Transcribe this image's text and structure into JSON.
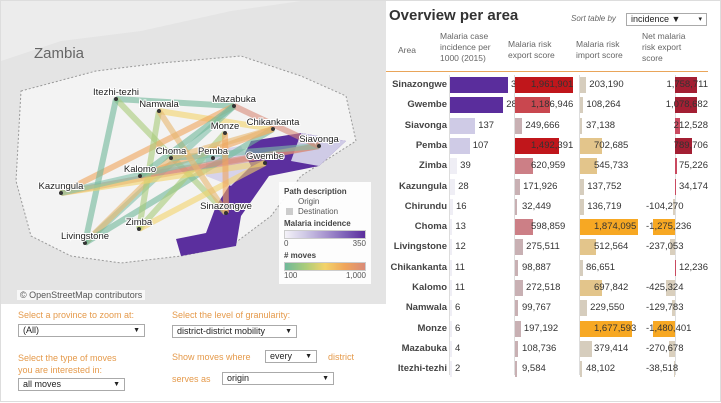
{
  "map": {
    "country_label": "Zambia",
    "attribution": "© OpenStreetMap contributors",
    "districts": [
      "Itezhi-tezhi",
      "Namwala",
      "Mazabuka",
      "Chikankanta",
      "Monze",
      "Siavonga",
      "Choma",
      "Pemba",
      "Gwembe",
      "Kalomo",
      "Kazungula",
      "Sinazongwe",
      "Zimba",
      "Livingstone"
    ],
    "routes": [
      [
        "Itezhi-tezhi",
        "Mazabuka"
      ],
      [
        "Itezhi-tezhi",
        "Sinazongwe"
      ],
      [
        "Namwala",
        "Chikankanta"
      ],
      [
        "Kazungula",
        "Mazabuka"
      ],
      [
        "Kazungula",
        "Siavonga"
      ],
      [
        "Livingstone",
        "Mazabuka"
      ],
      [
        "Livingstone",
        "Choma"
      ],
      [
        "Livingstone",
        "Chikankanta"
      ],
      [
        "Zimba",
        "Monze"
      ],
      [
        "Zimba",
        "Gwembe"
      ],
      [
        "Kalomo",
        "Chikankanta"
      ],
      [
        "Kalomo",
        "Siavonga"
      ],
      [
        "Choma",
        "Siavonga"
      ],
      [
        "Choma",
        "Chikankanta"
      ],
      [
        "Itezhi-tezhi",
        "Livingstone"
      ],
      [
        "Namwala",
        "Zimba"
      ],
      [
        "Kazungula",
        "Gwembe"
      ],
      [
        "Monze",
        "Sinazongwe"
      ],
      [
        "Mazabuka",
        "Siavonga"
      ],
      [
        "Pemba",
        "Kazungula"
      ],
      [
        "Namwala",
        "Sinazongwe"
      ],
      [
        "Kalomo",
        "Mazabuka"
      ]
    ],
    "legend": {
      "path_title": "Path description",
      "origin": "Origin",
      "destination": "Destination",
      "incidence_title": "Malaria incidence",
      "inc_min": "0",
      "inc_max": "350",
      "moves_title": "# moves",
      "moves_min": "100",
      "moves_max": "1,000"
    }
  },
  "controls": {
    "province_label": "Select a province to zoom at:",
    "province_value": "(All)",
    "granularity_label": "Select the level of granularity:",
    "granularity_value": "district-district mobility",
    "moves_label": "Select the type of moves you are interested in:",
    "moves_value": "all moves",
    "show_label": "Show moves where",
    "show_value": "every",
    "district_label": "district",
    "serves_label": "serves as",
    "serves_value": "origin"
  },
  "overview": {
    "title": "Overview per area",
    "sort_label": "Sort table by",
    "sort_value": "incidence ▼",
    "headers": [
      "Area",
      "Malaria case incidence per 1000 (2015)",
      "Malaria risk export score",
      "Malaria risk import score",
      "Net malaria risk export score"
    ],
    "rows": [
      {
        "area": "Sinazongwe",
        "inc": 315,
        "exp": "1,961,901",
        "imp": "203,190",
        "net": "1,758,711"
      },
      {
        "area": "Gwembe",
        "inc": 289,
        "exp": "1,186,946",
        "imp": "108,264",
        "net": "1,078,682"
      },
      {
        "area": "Siavonga",
        "inc": 137,
        "exp": "249,666",
        "imp": "37,138",
        "net": "212,528"
      },
      {
        "area": "Pemba",
        "inc": 107,
        "exp": "1,492,391",
        "imp": "702,685",
        "net": "789,706"
      },
      {
        "area": "Zimba",
        "inc": 39,
        "exp": "620,959",
        "imp": "545,733",
        "net": "75,226"
      },
      {
        "area": "Kazungula",
        "inc": 28,
        "exp": "171,926",
        "imp": "137,752",
        "net": "34,174"
      },
      {
        "area": "Chirundu",
        "inc": 16,
        "exp": "32,449",
        "imp": "136,719",
        "net": "-104,270"
      },
      {
        "area": "Choma",
        "inc": 13,
        "exp": "598,859",
        "imp": "1,874,095",
        "net": "-1,275,236"
      },
      {
        "area": "Livingstone",
        "inc": 12,
        "exp": "275,511",
        "imp": "512,564",
        "net": "-237,053"
      },
      {
        "area": "Chikankanta",
        "inc": 11,
        "exp": "98,887",
        "imp": "86,651",
        "net": "12,236"
      },
      {
        "area": "Kalomo",
        "inc": 11,
        "exp": "272,518",
        "imp": "697,842",
        "net": "-425,324"
      },
      {
        "area": "Namwala",
        "inc": 6,
        "exp": "99,767",
        "imp": "229,550",
        "net": "-129,783"
      },
      {
        "area": "Monze",
        "inc": 6,
        "exp": "197,192",
        "imp": "1,677,593",
        "net": "-1,480,401"
      },
      {
        "area": "Mazabuka",
        "inc": 4,
        "exp": "108,736",
        "imp": "379,414",
        "net": "-270,678"
      },
      {
        "area": "Itezhi-tezhi",
        "inc": 2,
        "exp": "9,584",
        "imp": "48,102",
        "net": "-38,518"
      }
    ]
  }
}
